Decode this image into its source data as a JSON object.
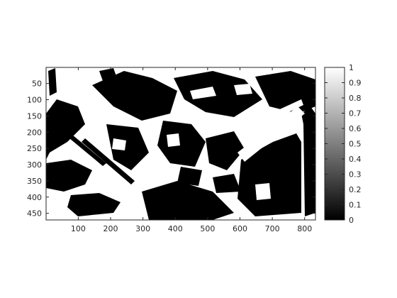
{
  "chart_data": {
    "type": "heatmap",
    "title": "",
    "xlabel": "",
    "ylabel": "",
    "colormap": "gray",
    "image_width": 833,
    "image_height": 470,
    "xlim": [
      0.5,
      833.5
    ],
    "ylim": [
      0.5,
      470.5
    ],
    "y_direction": "reverse",
    "x_ticks": [
      100,
      200,
      300,
      400,
      500,
      600,
      700,
      800
    ],
    "x_tick_labels": [
      "100",
      "200",
      "300",
      "400",
      "500",
      "600",
      "700",
      "800"
    ],
    "y_ticks": [
      50,
      100,
      150,
      200,
      250,
      300,
      350,
      400,
      450
    ],
    "y_tick_labels": [
      "50",
      "100",
      "150",
      "200",
      "250",
      "300",
      "350",
      "400",
      "450"
    ],
    "colorbar": {
      "range": [
        0,
        1
      ],
      "ticks": [
        0,
        0.1,
        0.2,
        0.3,
        0.4,
        0.5,
        0.6,
        0.7,
        0.8,
        0.9,
        1
      ],
      "tick_labels": [
        "0",
        "0.1",
        "0.2",
        "0.3",
        "0.4",
        "0.5",
        "0.6",
        "0.7",
        "0.8",
        "0.9",
        "1"
      ]
    },
    "values_note_binary": [
      0,
      1
    ]
  }
}
